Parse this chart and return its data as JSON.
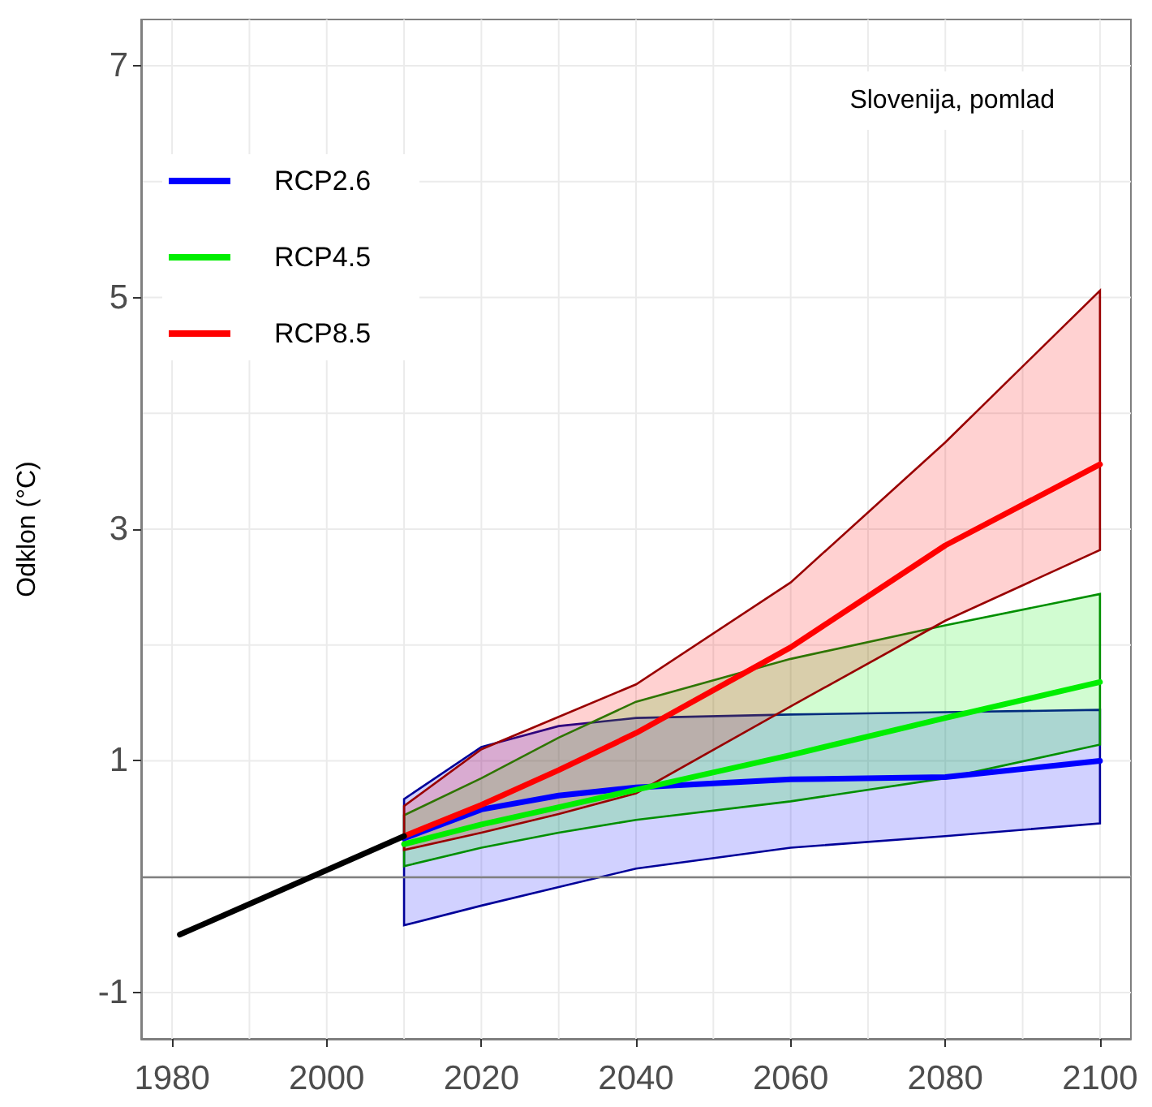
{
  "chart_data": {
    "type": "line",
    "ylabel": "Odklon (°C)",
    "annotations": [
      "Slovenija, pomlad"
    ],
    "xlim": [
      1976,
      2104
    ],
    "xticks": [
      1980,
      {
        "value": 1990,
        "label": null
      },
      2000,
      {
        "value": 2010,
        "label": null
      },
      2020,
      {
        "value": 2030,
        "label": null
      },
      2040,
      {
        "value": 2050,
        "label": null
      },
      2060,
      {
        "value": 2070,
        "label": null
      },
      2080,
      {
        "value": 2090,
        "label": null
      },
      2100
    ],
    "ylim": [
      -1.4,
      7.4
    ],
    "yticks": [
      -1,
      {
        "value": 0,
        "label": null
      },
      1,
      {
        "value": 2,
        "label": null
      },
      3,
      {
        "value": 4,
        "label": null
      },
      5,
      {
        "value": 6,
        "label": null
      },
      7
    ],
    "grid": true,
    "legend": "top left",
    "marker": "none",
    "line_style": "solid",
    "ref_lines": [
      {
        "axis": "y",
        "value": 0,
        "label": null,
        "color": "#808080"
      }
    ],
    "series": [
      {
        "name": "RCP2.6",
        "color": "#0000ff",
        "x": [
          2010,
          2020,
          2030,
          2040,
          2060,
          2080,
          2100
        ],
        "values": [
          0.33,
          0.58,
          0.7,
          0.77,
          0.84,
          0.86,
          1.0
        ],
        "lower": [
          -0.42,
          -0.25,
          -0.09,
          0.07,
          0.25,
          0.35,
          0.46
        ],
        "upper": [
          0.67,
          1.12,
          1.3,
          1.37,
          1.4,
          1.42,
          1.44
        ]
      },
      {
        "name": "RCP4.5",
        "color": "#00ee00",
        "x": [
          2010,
          2020,
          2030,
          2040,
          2060,
          2080,
          2100
        ],
        "values": [
          0.28,
          0.45,
          0.6,
          0.75,
          1.05,
          1.37,
          1.68
        ],
        "lower": [
          0.09,
          0.25,
          0.38,
          0.49,
          0.65,
          0.85,
          1.14
        ],
        "upper": [
          0.53,
          0.85,
          1.2,
          1.51,
          1.88,
          2.17,
          2.44
        ]
      },
      {
        "name": "RCP8.5",
        "color": "#ff0000",
        "x": [
          2010,
          2020,
          2030,
          2040,
          2060,
          2080,
          2100
        ],
        "values": [
          0.35,
          0.62,
          0.92,
          1.24,
          1.98,
          2.86,
          3.56
        ],
        "lower": [
          0.23,
          0.38,
          0.54,
          0.72,
          1.47,
          2.21,
          2.82
        ],
        "upper": [
          0.61,
          1.1,
          1.38,
          1.66,
          2.54,
          3.75,
          5.06
        ]
      },
      {
        "color": "#000000",
        "x": [
          1981,
          2010
        ],
        "values": [
          -0.5,
          0.35
        ]
      }
    ]
  }
}
